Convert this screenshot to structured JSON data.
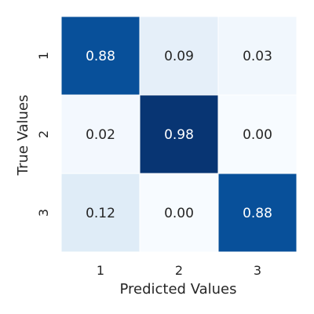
{
  "chart_data": {
    "type": "heatmap",
    "title": "",
    "xlabel": "Predicted Values",
    "ylabel": "True Values",
    "x_categories": [
      "1",
      "2",
      "3"
    ],
    "y_categories": [
      "1",
      "2",
      "3"
    ],
    "values": [
      [
        0.88,
        0.09,
        0.03
      ],
      [
        0.02,
        0.98,
        0.0
      ],
      [
        0.12,
        0.0,
        0.88
      ]
    ],
    "value_format": "0.00",
    "colormap": "Blues",
    "color_range": [
      0,
      1
    ],
    "colors": {
      "low": "#f7fbff",
      "high": "#08306b",
      "grid_line": "#ffffff",
      "text_dark": "#262626",
      "text_light": "#ffffff"
    },
    "legend": "none",
    "grid": false
  }
}
